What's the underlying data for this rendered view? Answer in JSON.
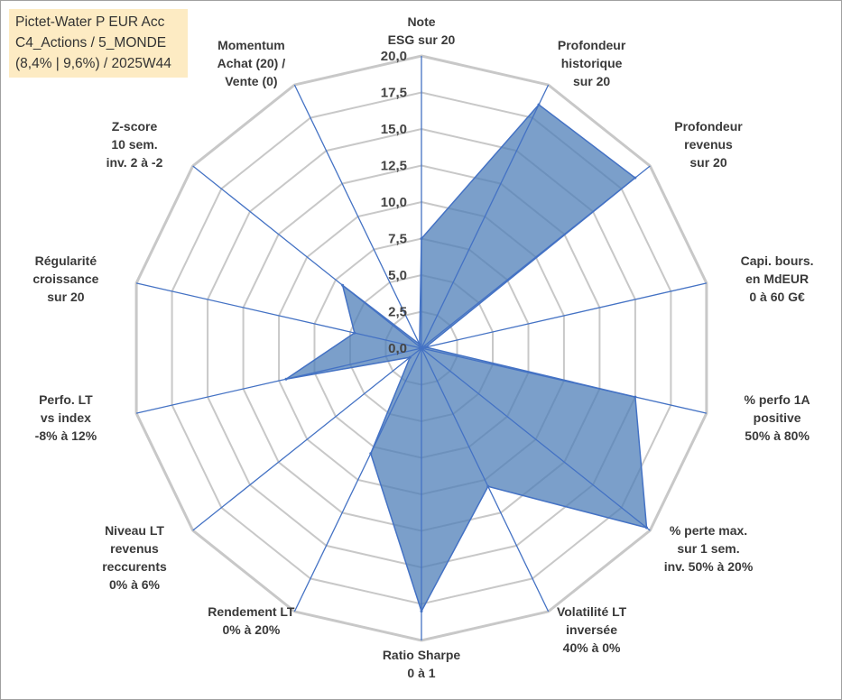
{
  "info_box": {
    "line1": "Pictet-Water P EUR Acc",
    "line2": "C4_Actions / 5_MONDE",
    "line3": "(8,4% | 9,6%) / 2025W44"
  },
  "chart_data": {
    "type": "radar",
    "range": [
      0,
      20
    ],
    "ticks": [
      "0,0",
      "2,5",
      "5,0",
      "7,5",
      "10,0",
      "12,5",
      "15,0",
      "17,5",
      "20,0"
    ],
    "tick_values": [
      0,
      2.5,
      5,
      7.5,
      10,
      12.5,
      15,
      17.5,
      20
    ],
    "axes": [
      {
        "label": [
          "Note",
          "ESG sur 20"
        ],
        "value": 7.5
      },
      {
        "label": [
          "Profondeur",
          "historique",
          "sur 20"
        ],
        "value": 18.5
      },
      {
        "label": [
          "Profondeur",
          "revenus",
          "sur 20"
        ],
        "value": 18.7
      },
      {
        "label": [
          "Capi. bours.",
          "en MdEUR",
          "0 à 60 G€"
        ],
        "value": 0.3
      },
      {
        "label": [
          "% perfo 1A",
          "positive",
          "50% à 80%"
        ],
        "value": 15.0
      },
      {
        "label": [
          "% perte max.",
          "sur 1 sem.",
          "inv. 50% à 20%"
        ],
        "value": 19.7
      },
      {
        "label": [
          "Volatilité LT",
          "inversée",
          "40% à 0%"
        ],
        "value": 10.5
      },
      {
        "label": [
          "Ratio Sharpe",
          "0 à 1"
        ],
        "value": 18.0
      },
      {
        "label": [
          "Rendement LT",
          "0% à 20%"
        ],
        "value": 8.0
      },
      {
        "label": [
          "Niveau LT",
          "revenus",
          "reccurents",
          "0% à 6%"
        ],
        "value": 1.0
      },
      {
        "label": [
          "Perfo. LT",
          "vs index",
          "-8% à 12%"
        ],
        "value": 9.5
      },
      {
        "label": [
          "Régularité",
          "croissance",
          "sur 20"
        ],
        "value": 4.7
      },
      {
        "label": [
          "Z-score",
          "10 sem.",
          "inv. 2 à -2"
        ],
        "value": 6.9
      },
      {
        "label": [
          "Momentum",
          "Achat (20) /",
          "Vente (0)"
        ],
        "value": 0.3
      }
    ],
    "colors": {
      "fill": "#4f7fb8",
      "fill_opacity": 0.75,
      "stroke": "#4472c4",
      "grid": "#c8c8c8",
      "spoke": "#4472c4",
      "outer": "#c8c8c8"
    }
  }
}
